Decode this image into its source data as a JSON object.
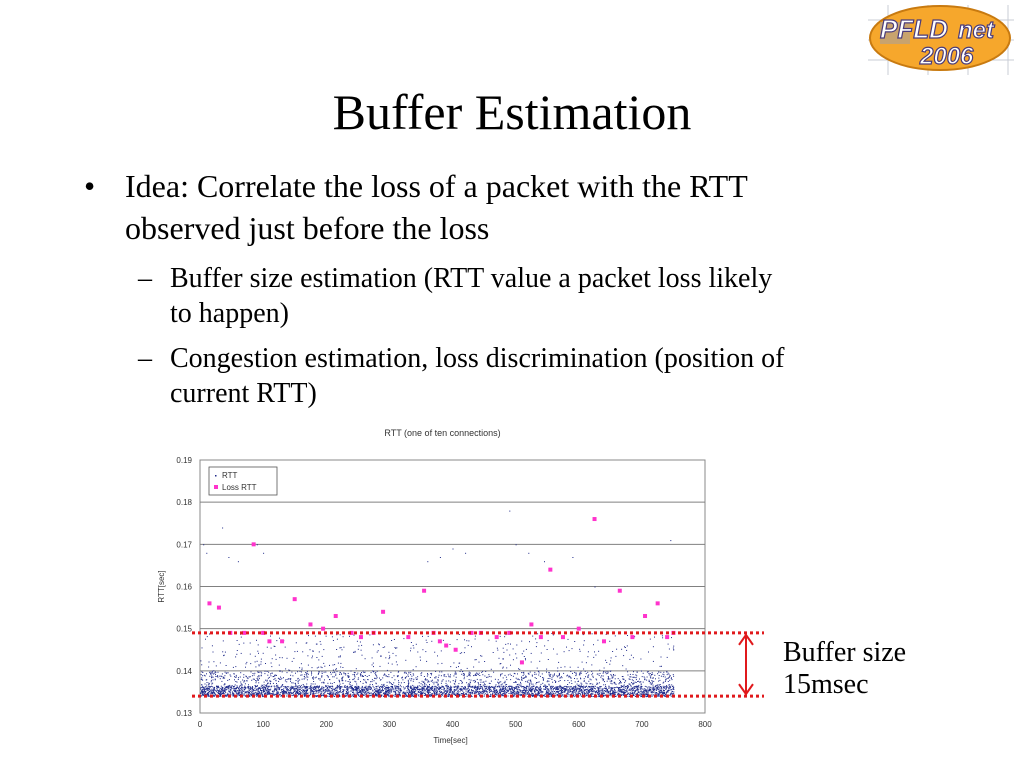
{
  "slide": {
    "title": "Buffer Estimation",
    "bullet_marker": "•",
    "dash_marker": "–",
    "bullets": [
      {
        "lines": [
          "Idea: Correlate the loss of a packet with the RTT",
          "observed just before the loss"
        ]
      }
    ],
    "sub_bullets": [
      {
        "lines": [
          "Buffer size estimation (RTT value a packet loss likely",
          "to happen)"
        ]
      },
      {
        "lines": [
          "Congestion estimation, loss discrimination (position of",
          "current RTT)"
        ]
      }
    ],
    "annotation": {
      "lines": [
        "Buffer size",
        "15msec"
      ],
      "color": "#e0191c"
    }
  },
  "logo": {
    "text_pfl": "PFLD",
    "text_net": "net",
    "text_year": "2006",
    "color": "#f39a1e"
  },
  "chart_data": {
    "type": "scatter",
    "title": "RTT (one of ten connections)",
    "xlabel": "Time[sec]",
    "ylabel": "RTT[sec]",
    "xlim": [
      0,
      800
    ],
    "ylim": [
      0.13,
      0.19
    ],
    "xticks": [
      0,
      100,
      200,
      300,
      400,
      500,
      600,
      700,
      800
    ],
    "yticks": [
      0.13,
      0.14,
      0.15,
      0.16,
      0.17,
      0.18,
      0.19
    ],
    "ytick_labels": [
      "0.13",
      "0.14",
      "0.15",
      "0.16",
      "0.17",
      "0.18",
      "0.19"
    ],
    "grid": "horizontal",
    "legend_position": "top-left",
    "series": [
      {
        "name": "RTT",
        "color": "#1f2a8a",
        "marker": "dot",
        "x_range": [
          0,
          750
        ],
        "band": [
          0.134,
          0.149
        ],
        "outliers": [
          [
            5,
            0.17
          ],
          [
            10,
            0.168
          ],
          [
            35,
            0.174
          ],
          [
            45,
            0.167
          ],
          [
            60,
            0.166
          ],
          [
            90,
            0.17
          ],
          [
            100,
            0.168
          ],
          [
            360,
            0.166
          ],
          [
            380,
            0.167
          ],
          [
            400,
            0.169
          ],
          [
            420,
            0.168
          ],
          [
            490,
            0.178
          ],
          [
            500,
            0.17
          ],
          [
            520,
            0.168
          ],
          [
            545,
            0.166
          ],
          [
            590,
            0.167
          ],
          [
            625,
            0.16
          ],
          [
            745,
            0.171
          ]
        ]
      },
      {
        "name": "Loss RTT",
        "color": "#ff33cc",
        "marker": "square",
        "points": [
          [
            15,
            0.156
          ],
          [
            30,
            0.155
          ],
          [
            48,
            0.149
          ],
          [
            70,
            0.149
          ],
          [
            85,
            0.17
          ],
          [
            100,
            0.149
          ],
          [
            110,
            0.147
          ],
          [
            130,
            0.147
          ],
          [
            150,
            0.157
          ],
          [
            175,
            0.151
          ],
          [
            195,
            0.15
          ],
          [
            215,
            0.153
          ],
          [
            240,
            0.149
          ],
          [
            255,
            0.148
          ],
          [
            275,
            0.149
          ],
          [
            290,
            0.154
          ],
          [
            330,
            0.148
          ],
          [
            355,
            0.159
          ],
          [
            370,
            0.149
          ],
          [
            380,
            0.147
          ],
          [
            390,
            0.146
          ],
          [
            405,
            0.145
          ],
          [
            430,
            0.149
          ],
          [
            445,
            0.149
          ],
          [
            470,
            0.148
          ],
          [
            490,
            0.149
          ],
          [
            510,
            0.142
          ],
          [
            525,
            0.151
          ],
          [
            540,
            0.148
          ],
          [
            555,
            0.164
          ],
          [
            575,
            0.148
          ],
          [
            600,
            0.15
          ],
          [
            625,
            0.176
          ],
          [
            640,
            0.147
          ],
          [
            665,
            0.159
          ],
          [
            685,
            0.148
          ],
          [
            705,
            0.153
          ],
          [
            725,
            0.156
          ],
          [
            740,
            0.148
          ],
          [
            750,
            0.149
          ]
        ]
      }
    ],
    "reference_lines": [
      {
        "y": 0.149,
        "color": "#e0191c",
        "style": "dotted"
      },
      {
        "y": 0.134,
        "color": "#e0191c",
        "style": "dotted"
      }
    ]
  }
}
